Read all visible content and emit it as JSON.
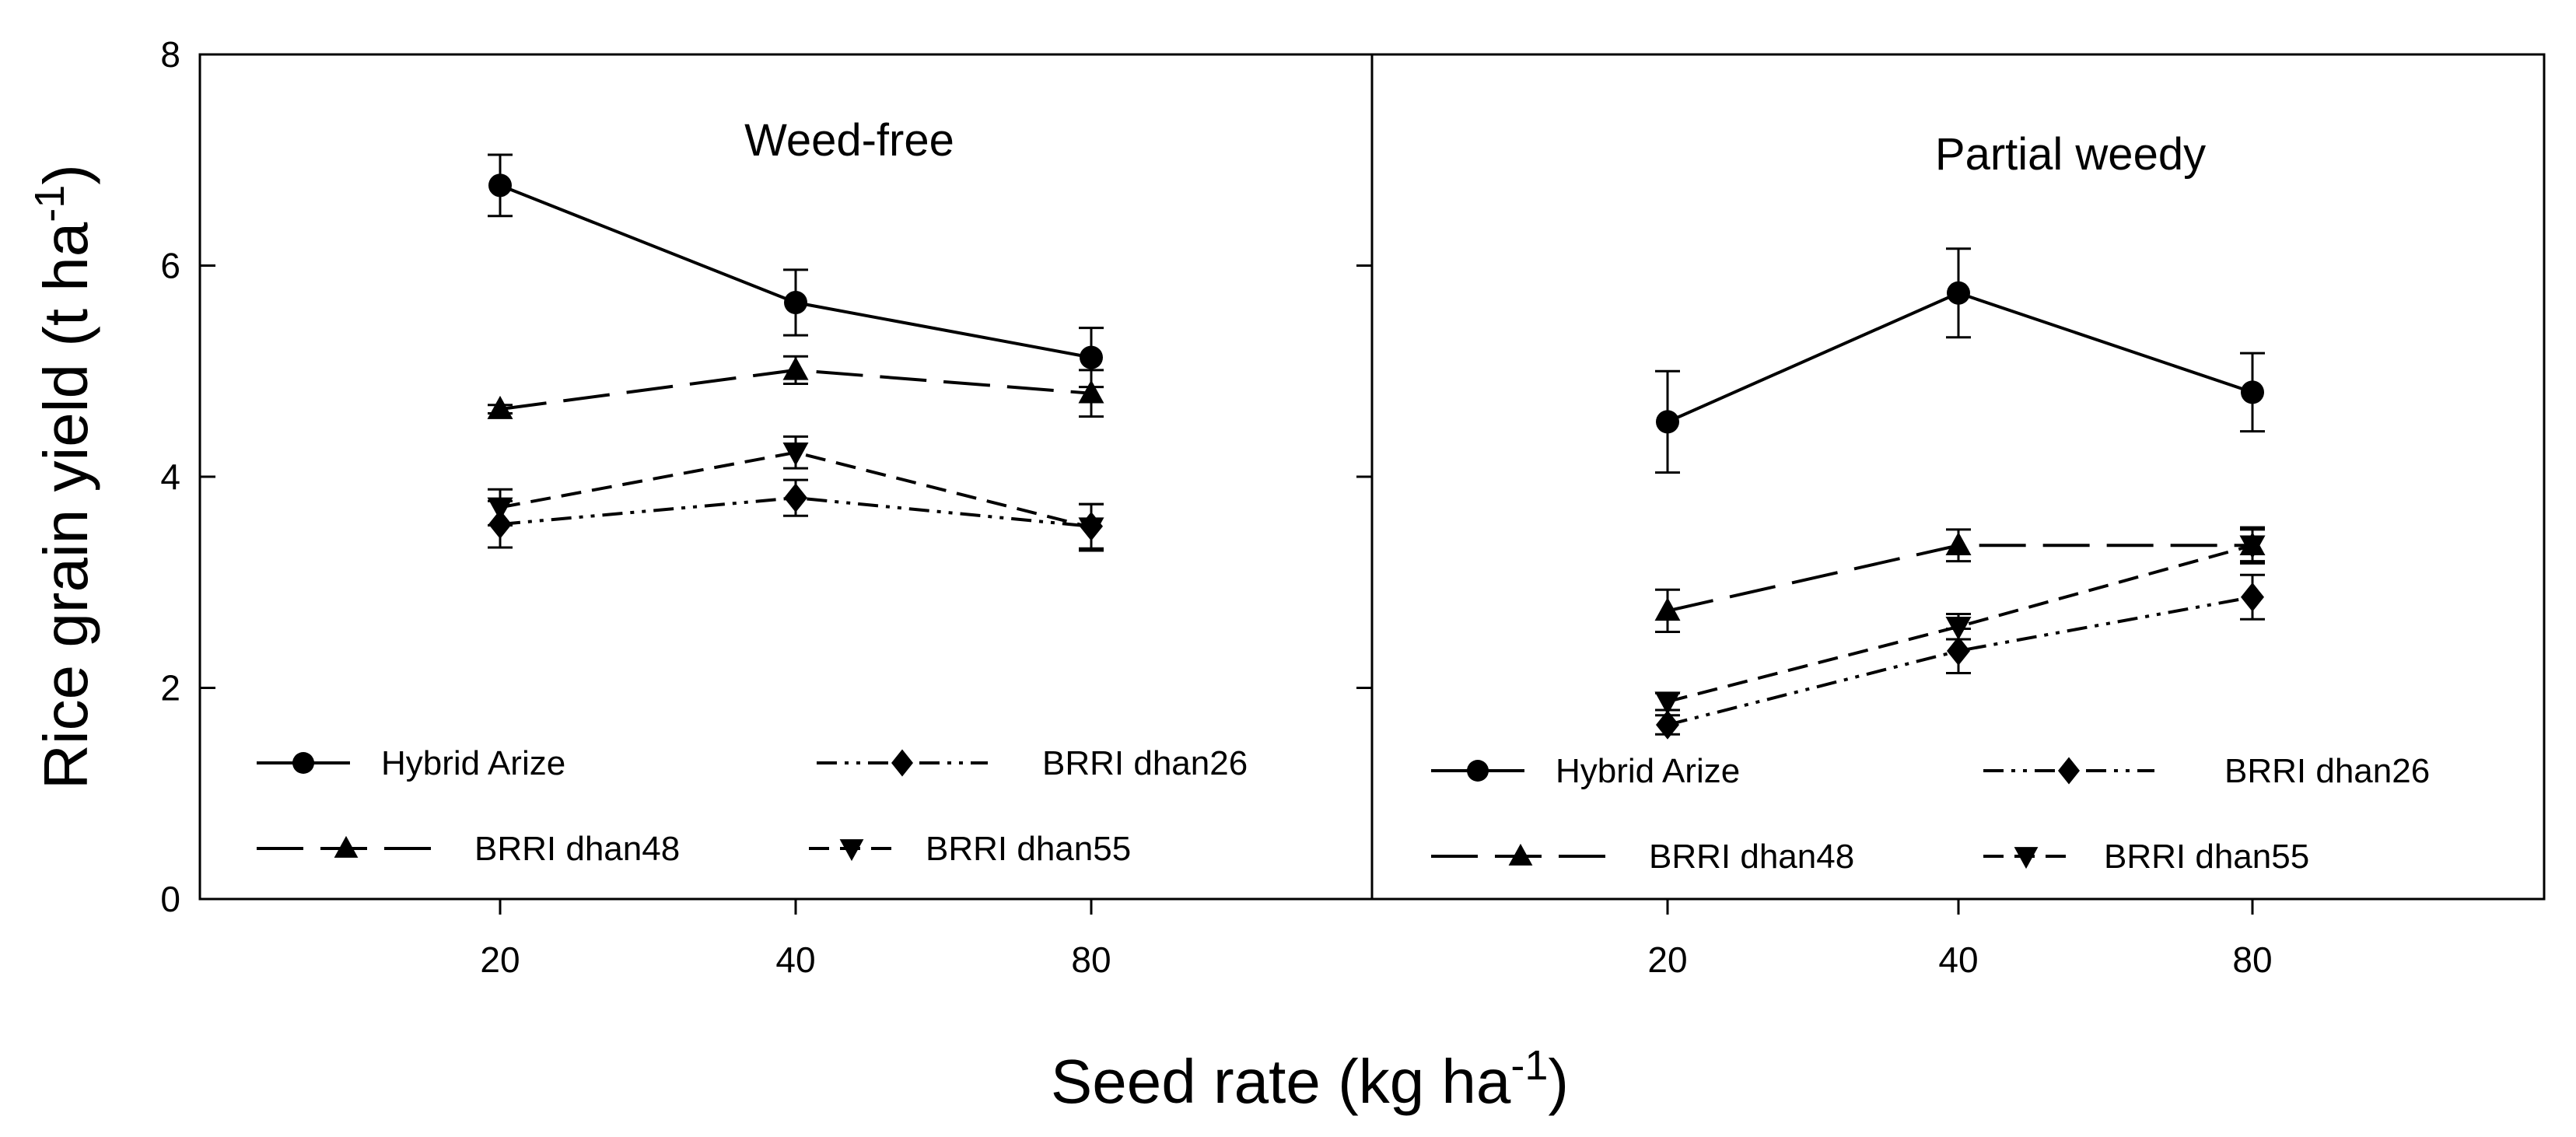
{
  "chart_data": {
    "type": "line",
    "ylabel": "Rice grain yield (t ha",
    "ylabel_sup": "-1",
    "ylabel_close": ")",
    "xlabel": "Seed rate (kg ha",
    "xlabel_sup": "-1",
    "xlabel_close": ")",
    "ylim": [
      0,
      8
    ],
    "yticks": [
      0,
      2,
      4,
      6,
      8
    ],
    "categories": [
      "20",
      "40",
      "80"
    ],
    "panels": [
      {
        "title": "Weed-free",
        "series": [
          {
            "name": "Hybrid Arize",
            "marker": "circle",
            "dash": "solid",
            "values": [
              6.76,
              5.65,
              5.13
            ],
            "errors": [
              0.29,
              0.31,
              0.28
            ]
          },
          {
            "name": "BRRI dhan48",
            "marker": "triangle-up",
            "dash": "longdash",
            "values": [
              4.64,
              5.01,
              4.79
            ],
            "errors": [
              0.04,
              0.13,
              0.22
            ]
          },
          {
            "name": "BRRI dhan55",
            "marker": "triangle-down",
            "dash": "shortdash",
            "values": [
              3.71,
              4.23,
              3.52
            ],
            "errors": [
              0.17,
              0.15,
              0.22
            ]
          },
          {
            "name": "BRRI dhan26",
            "marker": "diamond",
            "dash": "dashdotdot",
            "values": [
              3.55,
              3.8,
              3.53
            ],
            "errors": [
              0.22,
              0.17,
              0.21
            ]
          }
        ]
      },
      {
        "title": "Partial weedy",
        "series": [
          {
            "name": "Hybrid Arize",
            "marker": "circle",
            "dash": "solid",
            "values": [
              4.52,
              5.74,
              4.8
            ],
            "errors": [
              0.48,
              0.42,
              0.37
            ]
          },
          {
            "name": "BRRI dhan48",
            "marker": "triangle-up",
            "dash": "longdash",
            "values": [
              2.73,
              3.35,
              3.35
            ],
            "errors": [
              0.2,
              0.15,
              0.15
            ]
          },
          {
            "name": "BRRI dhan55",
            "marker": "triangle-down",
            "dash": "shortdash",
            "values": [
              1.87,
              2.58,
              3.35
            ],
            "errors": [
              0.08,
              0.12,
              0.17
            ]
          },
          {
            "name": "BRRI dhan26",
            "marker": "diamond",
            "dash": "dashdotdot",
            "values": [
              1.65,
              2.35,
              2.86
            ],
            "errors": [
              0.09,
              0.21,
              0.21
            ]
          }
        ]
      }
    ],
    "legend": {
      "row1": [
        "Hybrid Arize",
        "BRRI dhan26"
      ],
      "row2": [
        "BRRI dhan48",
        "BRRI dhan55"
      ]
    }
  }
}
